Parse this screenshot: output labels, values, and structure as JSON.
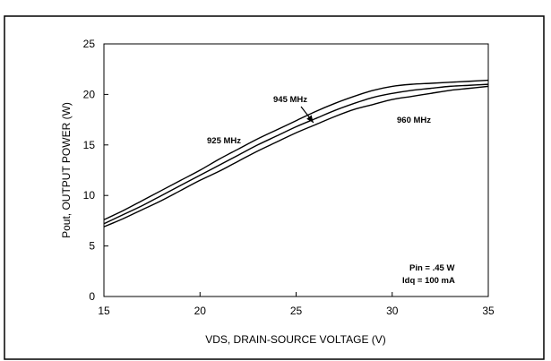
{
  "chart_data": {
    "type": "line",
    "title": "",
    "xlabel": "VDS, DRAIN-SOURCE VOLTAGE (V)",
    "ylabel": "Pout, OUTPUT POWER (W)",
    "xlim": [
      15,
      35
    ],
    "ylim": [
      0,
      25
    ],
    "x_ticks": [
      15,
      20,
      25,
      30,
      35
    ],
    "y_ticks": [
      0,
      5,
      10,
      15,
      20,
      25
    ],
    "grid": false,
    "legend": "none",
    "series": [
      {
        "name": "925 MHz",
        "x": [
          15,
          16,
          17,
          18,
          19,
          20,
          21,
          22,
          23,
          24,
          25,
          26,
          27,
          28,
          29,
          30,
          31,
          32,
          33,
          34,
          35
        ],
        "y": [
          7.6,
          8.5,
          9.5,
          10.5,
          11.5,
          12.5,
          13.6,
          14.6,
          15.6,
          16.5,
          17.4,
          18.3,
          19.1,
          19.8,
          20.4,
          20.8,
          21.0,
          21.1,
          21.2,
          21.3,
          21.4
        ]
      },
      {
        "name": "945 MHz",
        "x": [
          15,
          16,
          17,
          18,
          19,
          20,
          21,
          22,
          23,
          24,
          25,
          26,
          27,
          28,
          29,
          30,
          31,
          32,
          33,
          34,
          35
        ],
        "y": [
          7.2,
          8.1,
          9.0,
          10.0,
          11.0,
          12.0,
          13.0,
          14.0,
          15.0,
          15.9,
          16.8,
          17.6,
          18.4,
          19.1,
          19.7,
          20.1,
          20.4,
          20.6,
          20.8,
          20.9,
          21.0
        ]
      },
      {
        "name": "960 MHz",
        "x": [
          15,
          16,
          17,
          18,
          19,
          20,
          21,
          22,
          23,
          24,
          25,
          26,
          27,
          28,
          29,
          30,
          31,
          32,
          33,
          34,
          35
        ],
        "y": [
          6.9,
          7.7,
          8.6,
          9.5,
          10.5,
          11.5,
          12.4,
          13.4,
          14.4,
          15.3,
          16.2,
          17.0,
          17.8,
          18.5,
          19.0,
          19.5,
          19.8,
          20.1,
          20.4,
          20.6,
          20.8
        ]
      }
    ],
    "annotations": [
      {
        "text": "925 MHz"
      },
      {
        "text": "945 MHz"
      },
      {
        "text": "960 MHz"
      },
      {
        "text": "Pin = .45 W"
      },
      {
        "text": "Idq = 100 mA"
      }
    ]
  }
}
